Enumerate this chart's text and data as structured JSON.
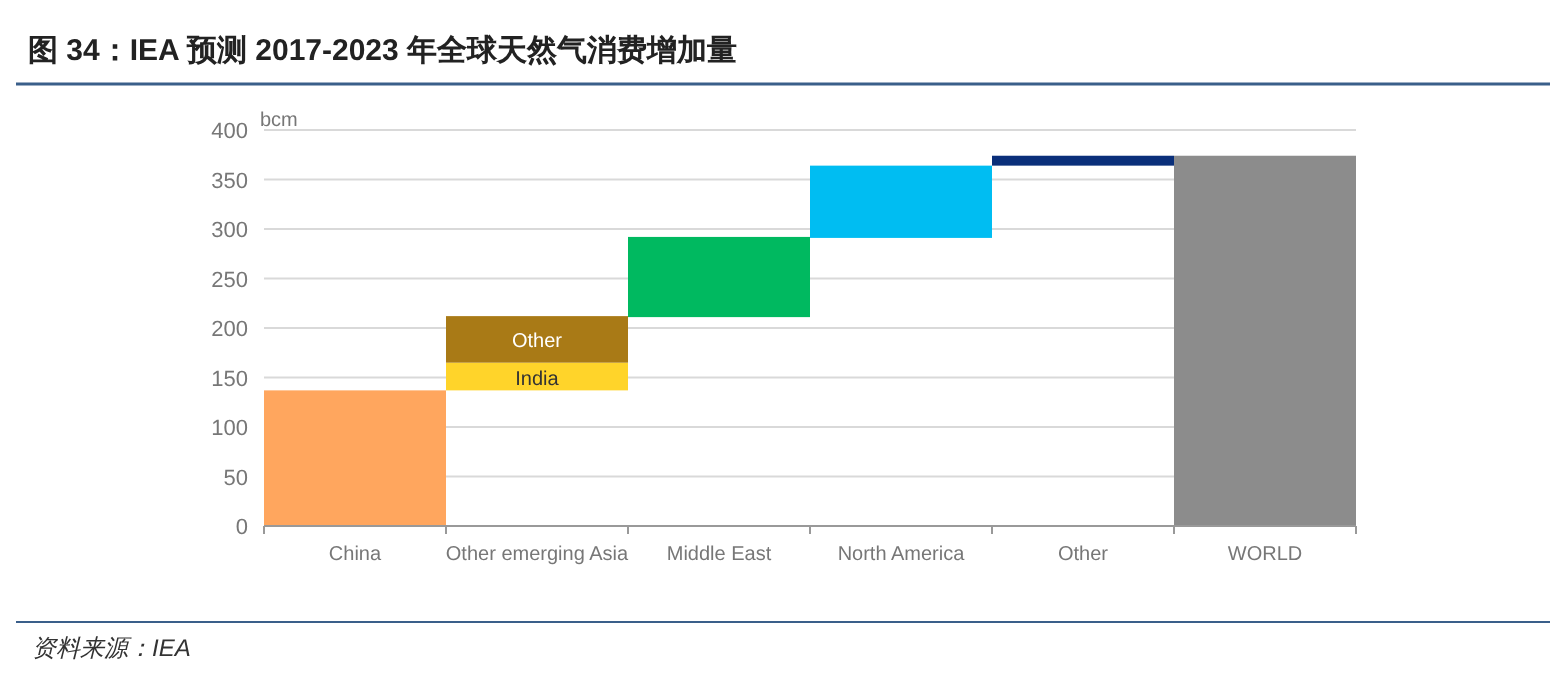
{
  "chart_data": {
    "type": "bar",
    "title": "图 34：IEA 预测 2017-2023 年全球天然气消费增加量",
    "ylabel": "bcm",
    "categories": [
      "China",
      "Other emerging Asia",
      "Middle East",
      "North America",
      "Other",
      "WORLD"
    ],
    "series": [
      {
        "values": [
          137,
          null,
          81,
          73,
          10,
          374
        ],
        "base": [
          0,
          null,
          211,
          291,
          364,
          0
        ],
        "colors": [
          "#ffa65e",
          null,
          "#00b960",
          "#00bdf2",
          "#0a2f7a",
          "#8c8c8c"
        ]
      },
      {
        "name": "India",
        "values": [
          null,
          28,
          null,
          null,
          null,
          null
        ],
        "base": [
          null,
          137,
          null,
          null,
          null,
          null
        ],
        "color": "#ffd42a"
      },
      {
        "name": "Other",
        "values": [
          null,
          47,
          null,
          null,
          null,
          null
        ],
        "base": [
          null,
          165,
          null,
          null,
          null,
          null
        ],
        "color": "#a97a16"
      }
    ],
    "ylim": [
      0,
      400
    ],
    "yticks": [
      0,
      50,
      100,
      150,
      200,
      250,
      300,
      350,
      400
    ],
    "grid": "y",
    "annotations": [
      "资料来源：IEA"
    ]
  }
}
